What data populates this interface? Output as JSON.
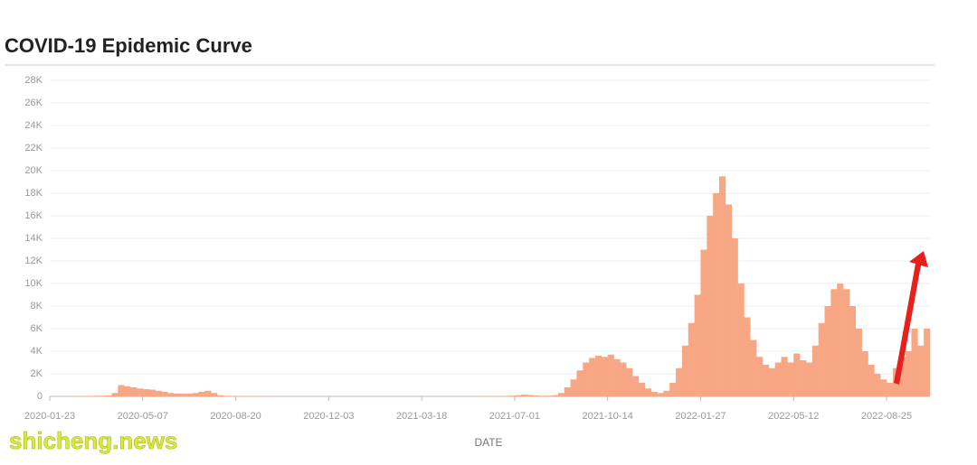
{
  "chart_data": {
    "type": "bar",
    "title": "COVID-19 Epidemic Curve",
    "x_label": "DATE",
    "watermark": "shicheng.news",
    "categories": [
      "2020-01-23",
      null,
      null,
      null,
      null,
      null,
      null,
      null,
      null,
      null,
      null,
      null,
      null,
      null,
      null,
      "2020-05-07",
      null,
      null,
      null,
      null,
      null,
      null,
      null,
      null,
      null,
      null,
      null,
      null,
      null,
      null,
      "2020-08-20",
      null,
      null,
      null,
      null,
      null,
      null,
      null,
      null,
      null,
      null,
      null,
      null,
      null,
      null,
      "2020-12-03",
      null,
      null,
      null,
      null,
      null,
      null,
      null,
      null,
      null,
      null,
      null,
      null,
      null,
      null,
      "2021-03-18",
      null,
      null,
      null,
      null,
      null,
      null,
      null,
      null,
      null,
      null,
      null,
      null,
      null,
      null,
      "2021-07-01",
      null,
      null,
      null,
      null,
      null,
      null,
      null,
      null,
      null,
      null,
      null,
      null,
      null,
      null,
      "2021-10-14",
      null,
      null,
      null,
      null,
      null,
      null,
      null,
      null,
      null,
      null,
      null,
      null,
      null,
      null,
      "2022-01-27",
      null,
      null,
      null,
      null,
      null,
      null,
      null,
      null,
      null,
      null,
      null,
      null,
      null,
      null,
      "2022-05-12",
      null,
      null,
      null,
      null,
      null,
      null,
      null,
      null,
      null,
      null,
      null,
      null,
      null,
      null,
      "2022-08-25",
      null,
      null,
      null,
      null,
      null,
      null
    ],
    "values": [
      5,
      5,
      10,
      10,
      20,
      30,
      40,
      50,
      60,
      80,
      300,
      1000,
      900,
      800,
      700,
      650,
      600,
      500,
      400,
      300,
      250,
      250,
      250,
      300,
      400,
      500,
      300,
      100,
      50,
      30,
      20,
      20,
      15,
      15,
      10,
      10,
      10,
      10,
      10,
      10,
      10,
      10,
      10,
      10,
      10,
      10,
      10,
      10,
      10,
      10,
      10,
      10,
      10,
      10,
      10,
      10,
      10,
      10,
      10,
      10,
      10,
      10,
      10,
      10,
      10,
      10,
      10,
      10,
      10,
      20,
      20,
      20,
      30,
      40,
      60,
      100,
      150,
      120,
      80,
      50,
      60,
      100,
      300,
      800,
      1500,
      2300,
      3000,
      3400,
      3600,
      3500,
      3700,
      3300,
      3000,
      2500,
      1800,
      1200,
      700,
      400,
      300,
      500,
      1200,
      2500,
      4500,
      6500,
      9000,
      13000,
      16000,
      18000,
      19500,
      17000,
      14000,
      10000,
      7000,
      5000,
      3500,
      2800,
      2500,
      3000,
      3500,
      3000,
      3800,
      3200,
      3000,
      4500,
      6500,
      8000,
      9500,
      10000,
      9500,
      8000,
      6000,
      4000,
      2800,
      2000,
      1500,
      1200,
      2500,
      3500,
      4000,
      6000,
      4500,
      6000
    ],
    "color": "#f7a784",
    "ylim": [
      0,
      28000
    ],
    "yticks": [
      0,
      {
        "value": 2000,
        "label": "2K"
      },
      {
        "value": 4000,
        "label": "4K"
      },
      {
        "value": 6000,
        "label": "6K"
      },
      {
        "value": 8000,
        "label": "8K"
      },
      {
        "value": 10000,
        "label": "10K"
      },
      {
        "value": 12000,
        "label": "12K"
      },
      {
        "value": 14000,
        "label": "14K"
      },
      {
        "value": 16000,
        "label": "16K"
      },
      {
        "value": 18000,
        "label": "18K"
      },
      {
        "value": 20000,
        "label": "20K"
      },
      {
        "value": 22000,
        "label": "22K"
      },
      {
        "value": 24000,
        "label": "24K"
      },
      {
        "value": 26000,
        "label": "26K"
      },
      {
        "value": 28000,
        "label": "28K"
      }
    ],
    "grid": true
  }
}
